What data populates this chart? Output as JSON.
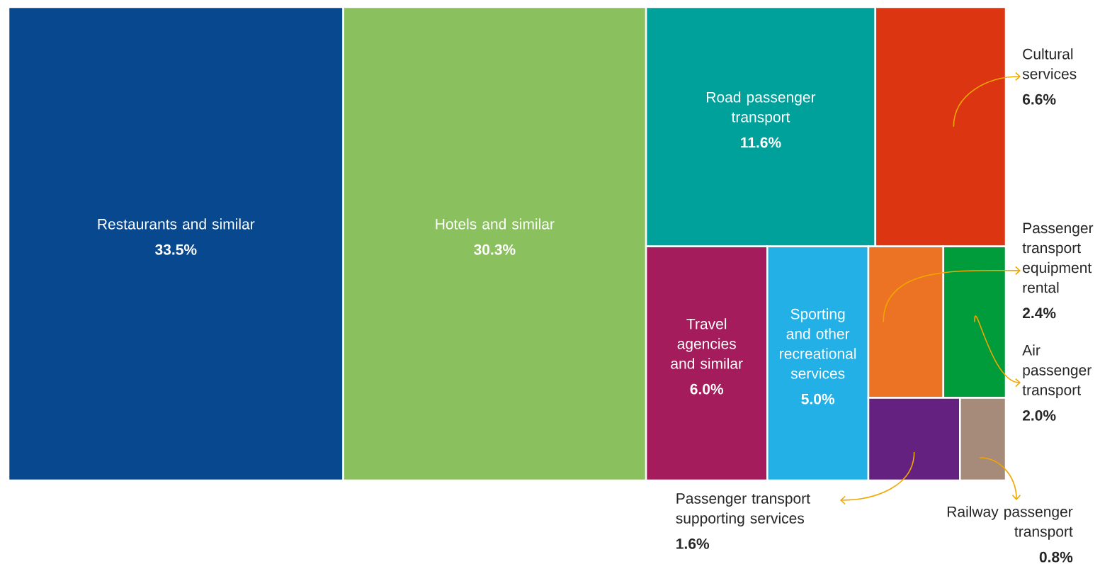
{
  "chart_data": {
    "type": "other",
    "categories": [
      "Restaurants and similar",
      "Hotels and similar",
      "Road passenger transport",
      "Cultural services",
      "Travel agencies and similar",
      "Sporting and other recreational services",
      "Passenger transport equipment rental",
      "Air passenger transport",
      "Passenger transport supporting services",
      "Railway passenger transport"
    ],
    "values": [
      33.5,
      30.3,
      11.6,
      6.6,
      6.0,
      5.0,
      2.4,
      2.0,
      1.6,
      0.8
    ],
    "value_labels": [
      "33.5%",
      "30.3%",
      "11.6%",
      "6.6%",
      "6.0%",
      "5.0%",
      "2.4%",
      "2.0%",
      "1.6%",
      "0.8%"
    ],
    "colors": [
      "#08488f",
      "#8bc05f",
      "#00a19a",
      "#dc3512",
      "#a51c5c",
      "#22b0e6",
      "#ec7323",
      "#009b3a",
      "#65217f",
      "#a68b7b"
    ]
  }
}
